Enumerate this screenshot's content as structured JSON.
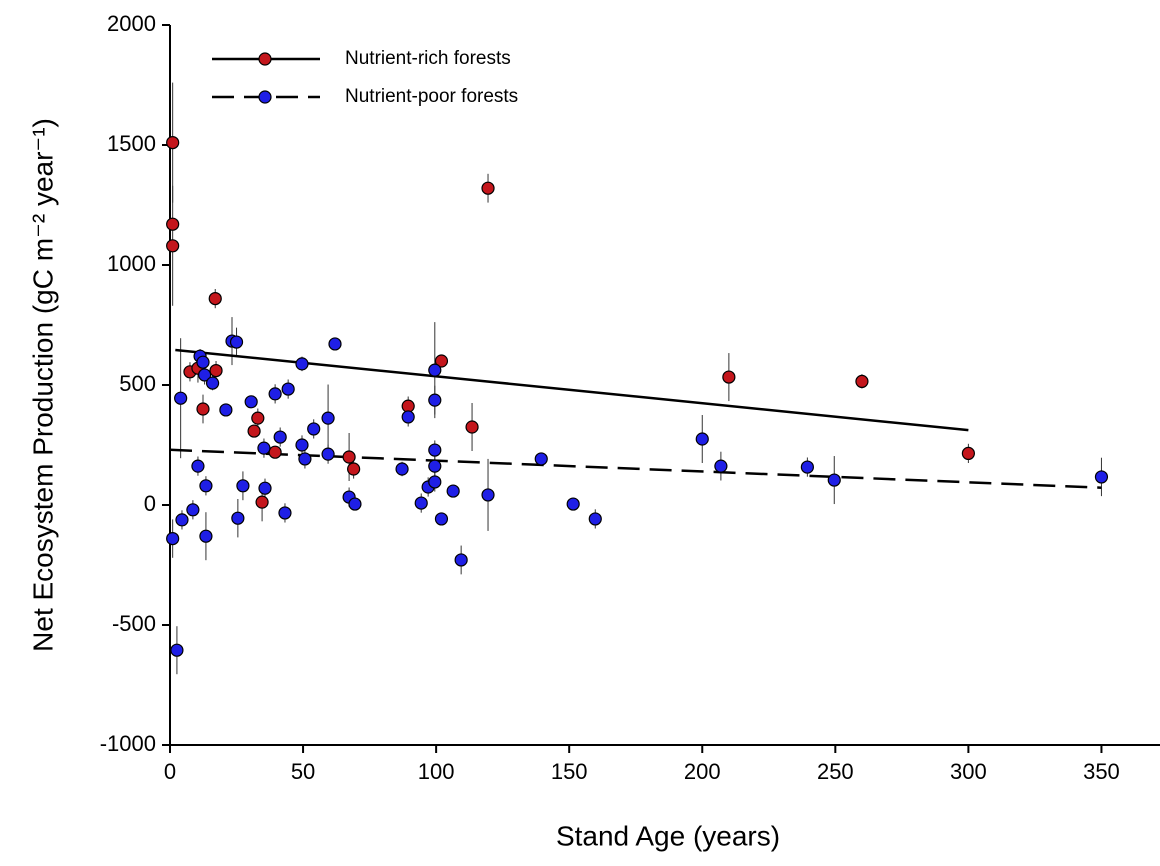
{
  "chart_data": {
    "type": "scatter",
    "xlabel": "Stand Age (years)",
    "ylabel": "Net Ecosystem Production (gC m⁻² year⁻¹)",
    "xlim": [
      0,
      372
    ],
    "ylim": [
      -1000,
      2000
    ],
    "xticks": [
      0,
      50,
      100,
      150,
      200,
      250,
      300,
      350
    ],
    "yticks": [
      -1000,
      -500,
      0,
      500,
      1000,
      1500,
      2000
    ],
    "legend": "upper left",
    "series": [
      {
        "name": "Nutrient-rich forests",
        "color": "#c4161c",
        "line_style": "solid",
        "x": [
          1,
          1,
          1,
          17,
          7.5,
          10.5,
          17.3,
          12.4,
          33,
          31.6,
          39.5,
          34.6,
          67.3,
          69,
          89.5,
          102,
          113.5,
          119.5,
          210,
          260,
          300
        ],
        "values": [
          1510,
          1170,
          1080,
          860,
          555,
          570,
          560,
          400,
          362,
          308,
          220,
          12,
          200,
          150,
          412,
          600,
          325,
          1320,
          533,
          515,
          215
        ],
        "errors": [
          250,
          0,
          250,
          40,
          40,
          60,
          40,
          60,
          40,
          20,
          20,
          80,
          100,
          40,
          40,
          20,
          100,
          60,
          100,
          30,
          40
        ],
        "fit_x": [
          2,
          300
        ],
        "fit_values": [
          646,
          312
        ]
      },
      {
        "name": "Nutrient-poor forests",
        "color": "#1f1fe6",
        "line_style": "dashed",
        "x": [
          1,
          2.6,
          4,
          4.5,
          8.6,
          10.5,
          11.3,
          12.4,
          13,
          13.5,
          13.5,
          16,
          21,
          23.3,
          25,
          25.5,
          27.4,
          30.5,
          35.3,
          35.7,
          39.5,
          41.4,
          43.2,
          44.4,
          49.6,
          49.6,
          50.7,
          54,
          59.4,
          59.4,
          62,
          67.3,
          69.5,
          87.2,
          89.5,
          94.4,
          97,
          99.5,
          99.5,
          99.5,
          99.5,
          99.5,
          102,
          106.4,
          109.4,
          119.5,
          139.5,
          151.5,
          159.8,
          200,
          207,
          239.5,
          249.6,
          350
        ],
        "values": [
          -140,
          -605,
          445,
          -62,
          -20,
          162,
          620,
          595,
          542,
          80,
          -130,
          508,
          396,
          683,
          679,
          -55,
          80,
          430,
          237,
          70,
          463,
          283,
          -33,
          483,
          588,
          250,
          192,
          317,
          362,
          212,
          671,
          33,
          4,
          150,
          367,
          8,
          75,
          562,
          437,
          229,
          162,
          96,
          -58,
          58,
          -229,
          42,
          192,
          4,
          -58,
          275,
          162,
          158,
          104,
          117
        ],
        "errors": [
          80,
          100,
          250,
          40,
          40,
          40,
          30,
          40,
          40,
          40,
          100,
          30,
          20,
          100,
          60,
          80,
          60,
          20,
          40,
          40,
          40,
          40,
          40,
          40,
          30,
          40,
          40,
          40,
          140,
          40,
          20,
          40,
          20,
          30,
          40,
          40,
          40,
          200,
          60,
          40,
          40,
          40,
          20,
          20,
          60,
          150,
          20,
          20,
          40,
          100,
          60,
          40,
          100,
          80
        ],
        "fit_x": [
          0,
          350
        ],
        "fit_values": [
          230,
          72
        ]
      }
    ]
  }
}
